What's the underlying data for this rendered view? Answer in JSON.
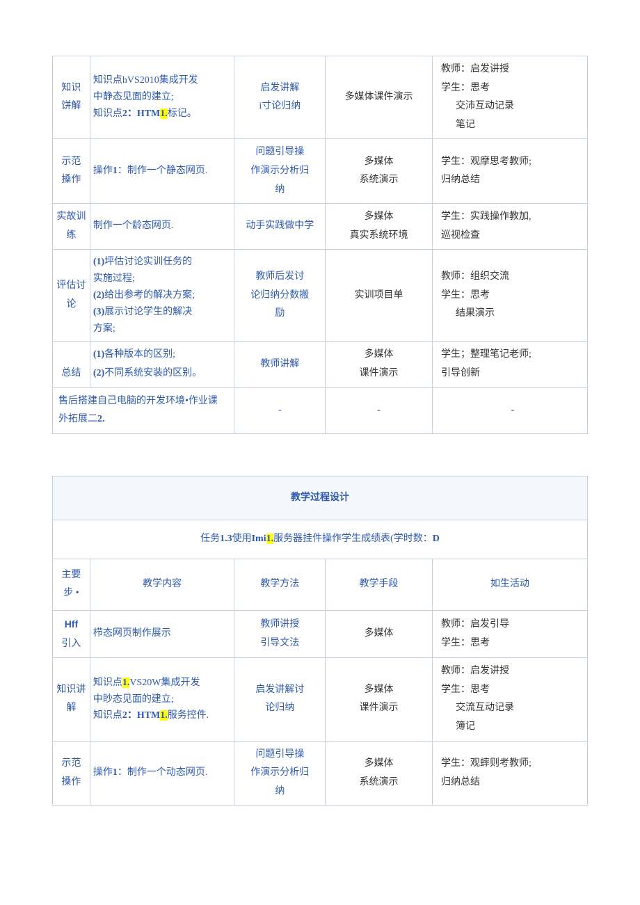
{
  "colors": {
    "border": "#c4cfe0",
    "text_blue": "#2e5aac",
    "text_blk": "#333333",
    "highlight": "#ffff00",
    "title_bg": "#f4f7fc"
  },
  "fonts": {
    "body_family": "SimSun",
    "body_size_pt": 11
  },
  "table1": {
    "rows": [
      {
        "col1": "知识\n饼解",
        "col2_lines": [
          "知识点hVS2010集成开发",
          "中静态见面的建立;"
        ],
        "col2_prefix": "知识点2：",
        "col2_hl_parts": [
          "HTM",
          "1.",
          "标记。"
        ],
        "col3": "启发讲解\ni寸论归纳",
        "col4": "多媒体课件演示",
        "col5": "教师：启发讲授\n学生：思考\n交沛互动记录\n笔记"
      },
      {
        "col1": "示范\n搡作",
        "col2_prefix2": "操作",
        "col2_bold": "1",
        "col2_rest": "：制作一个静态网页.",
        "col3": "问题引导操\n作演示分析归\n纳",
        "col4": "多媒体\n系统演示",
        "col5": "学生：观摩思考教师;\n归纳总结"
      },
      {
        "col1": "实故训练",
        "col2": "制作一个龄态网页.",
        "col3": "动手实践做中学",
        "col4": "多媒体\n真实系统环境",
        "col5": "学生：实践操作教加,\n巡视检查"
      },
      {
        "col1": "评估讨论",
        "col2_items": [
          "(1)坪估讨论实训任务的",
          "实施过程;",
          "(2)给出参考的解决方案;",
          "(3)展示讨论学生的解决",
          "方案;"
        ],
        "col3": "教师后发讨\n论归纳分数搬\n励",
        "col4": "实训项目单",
        "col5": "教师：组织交流\n学生：思考\n结果演示"
      },
      {
        "col1": "总结",
        "col2_items2": [
          "(1)各种版本的区别;",
          "(2)不同系统安装的区别。"
        ],
        "col3": "教师讲解",
        "col4": "多媒体\n课件演示",
        "col5": "学生；整理笔记老师;\n引导创新"
      },
      {
        "merge12": "售后搭建自己电脑的开发环境•作业课\n外拓展二2.",
        "col3": "-",
        "col4": "-",
        "col5": "-"
      }
    ]
  },
  "table2": {
    "title": "教学过程设计",
    "subtitle_parts": [
      "任务",
      "1.3",
      "使用",
      "Imi",
      "1.",
      "服务器挂件操作学生成绩表(学时数：",
      "D"
    ],
    "header": [
      "主要\n步 •",
      "教学内容",
      "教学方法",
      "教学手段",
      "如生活动"
    ],
    "rows": [
      {
        "col1": "Hff\n引入",
        "col2": "栉态网页制作展示",
        "col3": "教师讲授\n引导文法",
        "col4": "多媒体",
        "col5": "教师：启发引导\n学生：思考"
      },
      {
        "col1": "知识讲解",
        "col2_lines": [
          "知识点",
          "1.",
          "VS20W集成开发",
          "中眇态见面的建立;"
        ],
        "col2_prefix": "知识点2：",
        "col2_hl": [
          "HTM",
          "1.",
          "服务控件."
        ],
        "col3": "启发讲解讨\n论归纳",
        "col4": "多媒体\n课件演示",
        "col5": "教师：启发讲授\n学生：思考\n交流互动记录\n簿记"
      },
      {
        "col1": "示范\n搡作",
        "col2_prefix2": "操作",
        "col2_bold": "1",
        "col2_rest": "：制作一个动态网页.",
        "col3": "问题引导操\n作演示分析归\n纳",
        "col4": "多媒体\n系统演示",
        "col5": "学生：观蟀则考教师;\n归纳总结"
      }
    ]
  }
}
